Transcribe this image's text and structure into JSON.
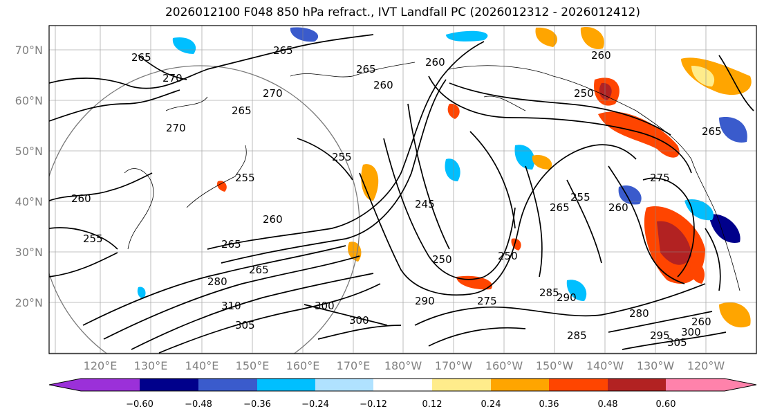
{
  "title": "2026012100 F048 850 hPa refract., IVT Landfall PC (2026012312 - 2026012412)",
  "lat_ticks": [
    "70°N",
    "60°N",
    "50°N",
    "40°N",
    "30°N",
    "20°N"
  ],
  "lon_ticks": [
    "120°E",
    "130°E",
    "140°E",
    "150°E",
    "160°E",
    "170°E",
    "180°W",
    "170°W",
    "160°W",
    "150°W",
    "140°W",
    "130°W",
    "120°W"
  ],
  "colorbar": {
    "colors": [
      "#9b30d9",
      "#00008b",
      "#3a5bcc",
      "#00bfff",
      "#b0e2ff",
      "#ffffff",
      "#ffec8b",
      "#ffa500",
      "#ff4500",
      "#b22222",
      "#ff82ab"
    ],
    "labels": [
      "−0.60",
      "−0.48",
      "−0.36",
      "−0.24",
      "−0.12",
      "0.12",
      "0.24",
      "0.36",
      "0.48",
      "0.60"
    ]
  },
  "contour_labels": [
    "265",
    "265",
    "270",
    "265",
    "260",
    "260",
    "270",
    "265",
    "260",
    "250",
    "270",
    "265",
    "255",
    "255",
    "245",
    "260",
    "265",
    "260",
    "255",
    "255",
    "265",
    "275",
    "250",
    "260",
    "265",
    "275",
    "310",
    "305",
    "300",
    "290",
    "280",
    "285",
    "280",
    "295",
    "300",
    "305",
    "250",
    "260",
    "290",
    "285",
    "300"
  ]
}
